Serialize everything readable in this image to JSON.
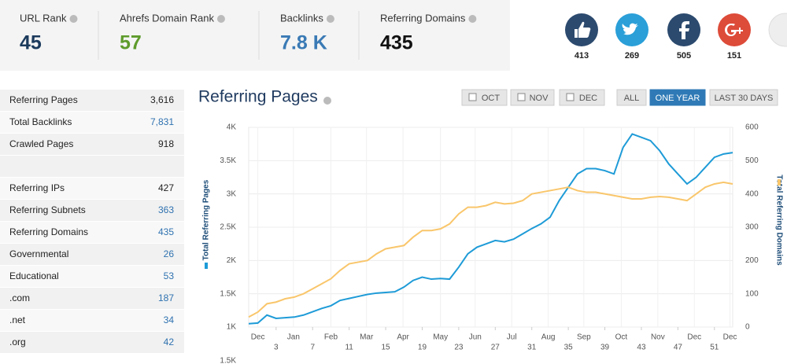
{
  "stats": [
    {
      "label": "URL Rank",
      "value": "45"
    },
    {
      "label": "Ahrefs Domain Rank",
      "value": "57"
    },
    {
      "label": "Backlinks",
      "value": "7.8 K"
    },
    {
      "label": "Referring Domains",
      "value": "435"
    }
  ],
  "social_counts": [
    "413",
    "269",
    "505",
    "151"
  ],
  "sidebar": {
    "rows": [
      {
        "label": "Referring Pages",
        "value": "3,616",
        "link": false
      },
      {
        "label": "Total Backlinks",
        "value": "7,831",
        "link": true
      },
      {
        "label": "Crawled Pages",
        "value": "918",
        "link": false
      },
      {
        "label": "Referring IPs",
        "value": "427",
        "link": false
      },
      {
        "label": "Referring Subnets",
        "value": "363",
        "link": true
      },
      {
        "label": "Referring Domains",
        "value": "435",
        "link": true
      },
      {
        "label": "Governmental",
        "value": "26",
        "link": true
      },
      {
        "label": "Educational",
        "value": "53",
        "link": true
      },
      {
        "label": ".com",
        "value": "187",
        "link": true
      },
      {
        "label": ".net",
        "value": "34",
        "link": true
      },
      {
        "label": ".org",
        "value": "42",
        "link": true
      }
    ]
  },
  "controls": {
    "months": [
      "OCT",
      "NOV",
      "DEC"
    ],
    "ranges": [
      "ALL",
      "ONE YEAR",
      "LAST 30 DAYS"
    ],
    "active_range_index": 1
  },
  "chart_data": {
    "type": "line",
    "title": "Referring Pages",
    "x": [
      0,
      1,
      2,
      3,
      4,
      5,
      6,
      7,
      8,
      9,
      10,
      11,
      12,
      13,
      14,
      15,
      16,
      17,
      18,
      19,
      20,
      21,
      22,
      23,
      24,
      25,
      26,
      27,
      28,
      29,
      30,
      31,
      32,
      33,
      34,
      35,
      36,
      37,
      38,
      39,
      40,
      41,
      42,
      43,
      44,
      45,
      46,
      47,
      48,
      49,
      50,
      51,
      52,
      53
    ],
    "xlim": [
      0,
      53
    ],
    "xticks": [
      3,
      7,
      11,
      15,
      19,
      23,
      27,
      31,
      35,
      39,
      43,
      47,
      51
    ],
    "xticks_months": [
      {
        "value": 1,
        "label": "Dec"
      },
      {
        "value": 4.9,
        "label": "Jan"
      },
      {
        "value": 9,
        "label": "Feb"
      },
      {
        "value": 12.9,
        "label": "Mar"
      },
      {
        "value": 16.9,
        "label": "Apr"
      },
      {
        "value": 21,
        "label": "May"
      },
      {
        "value": 24.8,
        "label": "Jun"
      },
      {
        "value": 28.8,
        "label": "Jul"
      },
      {
        "value": 32.8,
        "label": "Aug"
      },
      {
        "value": 36.7,
        "label": "Sep"
      },
      {
        "value": 40.8,
        "label": "Oct"
      },
      {
        "value": 44.8,
        "label": "Nov"
      },
      {
        "value": 48.8,
        "label": "Dec"
      },
      {
        "value": 52.7,
        "label": "Dec"
      }
    ],
    "ylim": [
      1000,
      4000
    ],
    "yticks": [
      {
        "value": 1000,
        "label": "1K"
      },
      {
        "value": 1500,
        "label": "1.5K"
      },
      {
        "value": 2000,
        "label": "2K"
      },
      {
        "value": 2500,
        "label": "2.5K"
      },
      {
        "value": 3000,
        "label": "3K"
      },
      {
        "value": 3500,
        "label": "3.5K"
      },
      {
        "value": 4000,
        "label": "4K"
      }
    ],
    "y2lim": [
      0,
      600
    ],
    "y2ticks": [
      0,
      100,
      200,
      300,
      400,
      500,
      600
    ],
    "grid": true,
    "series": [
      {
        "name": "Total Referring Pages",
        "color": "#1e9bd7",
        "values": [
          1050,
          1060,
          1180,
          1130,
          1140,
          1150,
          1180,
          1230,
          1280,
          1320,
          1400,
          1430,
          1460,
          1490,
          1510,
          1520,
          1530,
          1600,
          1700,
          1750,
          1720,
          1730,
          1720,
          1900,
          2100,
          2200,
          2250,
          2300,
          2280,
          2320,
          2400,
          2480,
          2550,
          2650,
          2900,
          3100,
          3300,
          3380,
          3380,
          3350,
          3300,
          3700,
          3900,
          3850,
          3800,
          3650,
          3450,
          3300,
          3150,
          3250,
          3400,
          3550,
          3600,
          3620
        ]
      },
      {
        "name": "Total Referring Domains",
        "color": "#f9c66b",
        "axis": "y2",
        "values": [
          30,
          45,
          70,
          75,
          85,
          90,
          100,
          115,
          130,
          145,
          170,
          190,
          195,
          200,
          220,
          235,
          240,
          245,
          270,
          290,
          290,
          295,
          310,
          340,
          360,
          360,
          365,
          375,
          370,
          372,
          380,
          400,
          405,
          410,
          415,
          420,
          410,
          405,
          405,
          400,
          395,
          390,
          385,
          385,
          390,
          392,
          390,
          385,
          380,
          400,
          420,
          430,
          435,
          430
        ]
      }
    ]
  },
  "next_chart": {
    "ytick_label": "1.5K"
  }
}
